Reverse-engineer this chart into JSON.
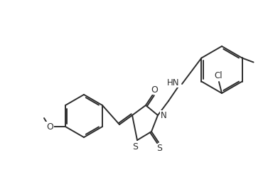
{
  "bg_color": "#ffffff",
  "bond_color": "#2d2d2d",
  "bond_lw": 1.4,
  "figsize": [
    3.77,
    2.46
  ],
  "dpi": 100,
  "xlim": [
    0,
    377
  ],
  "ylim": [
    0,
    246
  ]
}
